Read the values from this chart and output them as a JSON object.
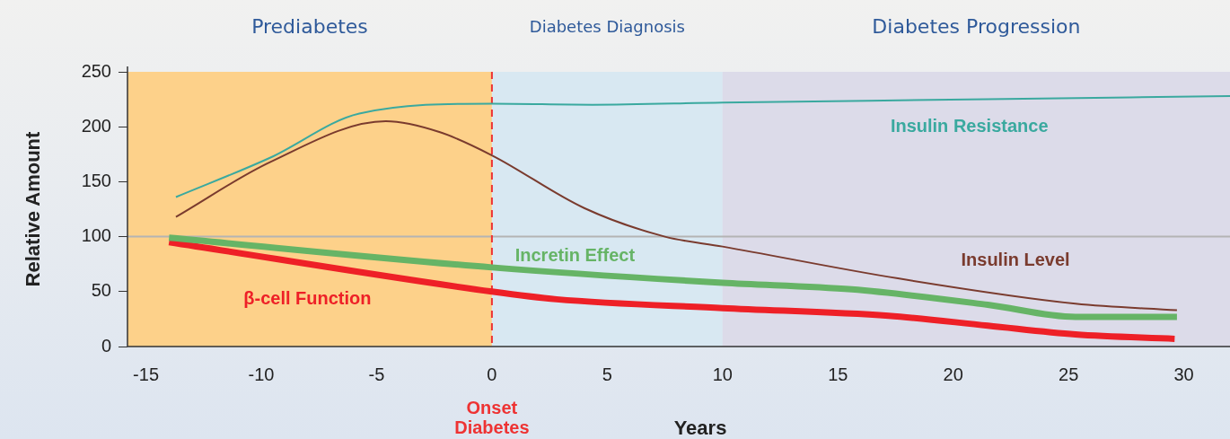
{
  "chart_data": {
    "type": "line",
    "xlabel": "Years",
    "ylabel": "Relative Amount",
    "xlim": [
      -15.8,
      32
    ],
    "xticks": [
      -15,
      -10,
      -5,
      0,
      5,
      10,
      15,
      20,
      25,
      30
    ],
    "ylim": [
      0,
      250
    ],
    "yticks": [
      0,
      50,
      100,
      150,
      200,
      250
    ],
    "grid": false,
    "legend": false,
    "marker": "none",
    "line_style": "solid",
    "series": [
      {
        "name": "Insulin Resistance",
        "color": "#3aa99f",
        "x": [
          -13.7,
          -9.6,
          -5.75,
          0,
          4.35,
          10,
          21.5,
          32
        ],
        "values": [
          136,
          172,
          212,
          221,
          220,
          222,
          225,
          228
        ]
      },
      {
        "name": "Insulin Level",
        "color": "#7a3b2e",
        "x": [
          -13.7,
          -9.6,
          -4.6,
          -2.25,
          0,
          4,
          7.5,
          10,
          17.6,
          25.3,
          29.7
        ],
        "values": [
          118,
          168,
          205,
          195,
          174,
          126,
          100,
          91,
          62,
          39,
          33
        ]
      },
      {
        "name": "Incretin Effect",
        "color": "#66b466",
        "x": [
          -14,
          0,
          10,
          15.6,
          21.5,
          25.3,
          29.7
        ],
        "values": [
          99,
          72,
          58,
          52,
          38,
          27,
          27
        ]
      },
      {
        "name": "β-cell Function",
        "color": "#ee2027",
        "x": [
          -14,
          0,
          2.8,
          10,
          17.2,
          21.5,
          25.3,
          29.6
        ],
        "values": [
          95,
          50,
          43,
          35,
          28,
          19,
          11,
          7
        ]
      }
    ],
    "ref_lines": [
      {
        "axis": "y",
        "value": 100,
        "color": "#b4b4b4",
        "line_style": "solid"
      },
      {
        "axis": "x",
        "value": 0,
        "label": "Onset Diabetes",
        "color": "#ee3333",
        "line_style": "dashed"
      }
    ],
    "bands": [
      {
        "axis": "x",
        "from": -15.8,
        "to": 0,
        "label": "Prediabetes",
        "color": "#fdd18a"
      },
      {
        "axis": "x",
        "from": 0,
        "to": 10,
        "label": "Diabetes Diagnosis",
        "color": "#d8e8f2"
      },
      {
        "axis": "x",
        "from": 10,
        "to": 32,
        "label": "Diabetes Progression",
        "color": "#dcdbe9"
      }
    ]
  }
}
